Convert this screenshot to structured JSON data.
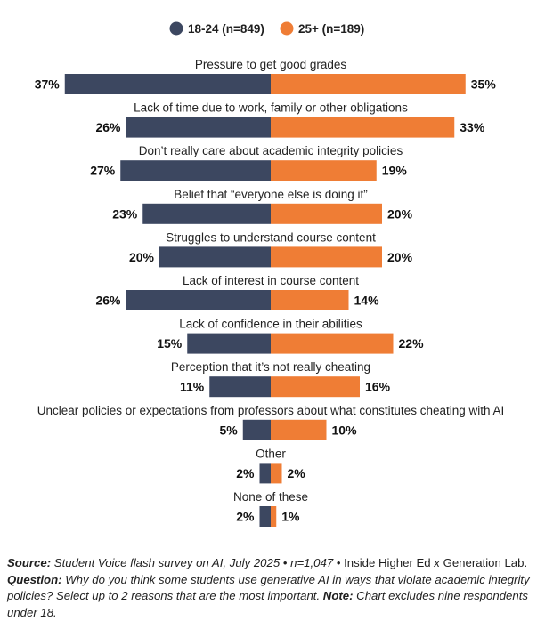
{
  "chart_data": {
    "type": "bar",
    "orientation": "diverging-horizontal",
    "legend_position": "top-center",
    "categories": [
      "Pressure to get good grades",
      "Lack of time due to work, family or other obligations",
      "Don’t really care about academic integrity policies",
      "Belief that “everyone else is doing it”",
      "Struggles to understand course content",
      "Lack of interest in course content",
      "Lack of confidence in their abilities",
      "Perception that it’s not really cheating",
      "Unclear policies or expectations from professors about what constitutes cheating with AI",
      "Other",
      "None of these"
    ],
    "series": [
      {
        "name": "18-24 (n=849)",
        "color": "#3c4760",
        "values": [
          37,
          26,
          27,
          23,
          20,
          26,
          15,
          11,
          5,
          2,
          2
        ],
        "labels": [
          "37%",
          "26%",
          "27%",
          "23%",
          "20%",
          "26%",
          "15%",
          "11%",
          "5%",
          "2%",
          "2%"
        ]
      },
      {
        "name": "25+ (n=189)",
        "color": "#ef7d35",
        "values": [
          35,
          33,
          19,
          20,
          20,
          14,
          22,
          16,
          10,
          2,
          1
        ],
        "labels": [
          "35%",
          "33%",
          "19%",
          "20%",
          "20%",
          "14%",
          "22%",
          "16%",
          "10%",
          "2%",
          "1%"
        ]
      }
    ]
  },
  "footnote": {
    "source_label": "Source:",
    "source_text": "Student Voice flash survey on AI, July 2025",
    "sep1": " • ",
    "n_text": "n=1,047",
    "sep2": " • ",
    "publisher_a": "Inside Higher Ed",
    "x_text": " x ",
    "publisher_b": "Generation Lab.",
    "question_label": "Question:",
    "question_text": "Why do you think some students use generative AI in ways that violate academic integrity policies? Select up to 2 reasons that are the most important.",
    "note_label": "Note:",
    "note_text": "Chart excludes nine respondents under 18."
  }
}
